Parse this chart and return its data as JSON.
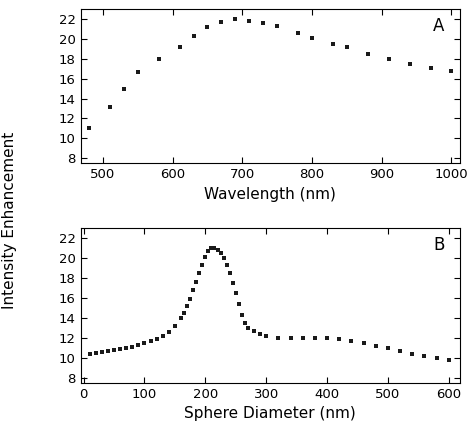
{
  "panel_A": {
    "x": [
      480,
      510,
      530,
      550,
      580,
      610,
      630,
      650,
      670,
      690,
      710,
      730,
      750,
      780,
      800,
      830,
      850,
      880,
      910,
      940,
      970,
      1000
    ],
    "y": [
      11.0,
      13.2,
      15.0,
      16.7,
      18.0,
      19.2,
      20.3,
      21.2,
      21.7,
      22.0,
      21.8,
      21.6,
      21.3,
      20.6,
      20.1,
      19.5,
      19.2,
      18.5,
      18.0,
      17.5,
      17.1,
      16.8
    ],
    "xlabel": "Wavelength (nm)",
    "xlim": [
      468,
      1012
    ],
    "xticks": [
      500,
      600,
      700,
      800,
      900,
      1000
    ],
    "ylim": [
      7.5,
      23.0
    ],
    "yticks": [
      8,
      10,
      12,
      14,
      16,
      18,
      20,
      22
    ],
    "label": "A"
  },
  "panel_B": {
    "x": [
      10,
      20,
      30,
      40,
      50,
      60,
      70,
      80,
      90,
      100,
      110,
      120,
      130,
      140,
      150,
      160,
      165,
      170,
      175,
      180,
      185,
      190,
      195,
      200,
      205,
      210,
      215,
      220,
      225,
      230,
      235,
      240,
      245,
      250,
      255,
      260,
      265,
      270,
      280,
      290,
      300,
      320,
      340,
      360,
      380,
      400,
      420,
      440,
      460,
      480,
      500,
      520,
      540,
      560,
      580,
      600
    ],
    "y": [
      10.4,
      10.5,
      10.6,
      10.7,
      10.8,
      10.9,
      11.0,
      11.1,
      11.3,
      11.5,
      11.7,
      11.9,
      12.2,
      12.6,
      13.2,
      14.0,
      14.5,
      15.2,
      15.9,
      16.8,
      17.6,
      18.5,
      19.3,
      20.1,
      20.7,
      21.0,
      21.0,
      20.8,
      20.5,
      20.0,
      19.3,
      18.5,
      17.5,
      16.5,
      15.4,
      14.3,
      13.5,
      13.0,
      12.7,
      12.4,
      12.2,
      12.0,
      12.0,
      12.0,
      12.0,
      12.0,
      11.9,
      11.7,
      11.5,
      11.2,
      11.0,
      10.7,
      10.4,
      10.2,
      10.0,
      9.8
    ],
    "xlabel": "Sphere Diameter (nm)",
    "xlim": [
      -5,
      618
    ],
    "xticks": [
      0,
      100,
      200,
      300,
      400,
      500,
      600
    ],
    "ylim": [
      7.5,
      23.0
    ],
    "yticks": [
      8,
      10,
      12,
      14,
      16,
      18,
      20,
      22
    ],
    "label": "B"
  },
  "ylabel": "Intensity Enhancement",
  "marker": "s",
  "marker_size": 3.5,
  "marker_color": "#1a1a1a",
  "bg_color": "#ffffff",
  "tick_fontsize": 9.5,
  "label_fontsize": 11
}
